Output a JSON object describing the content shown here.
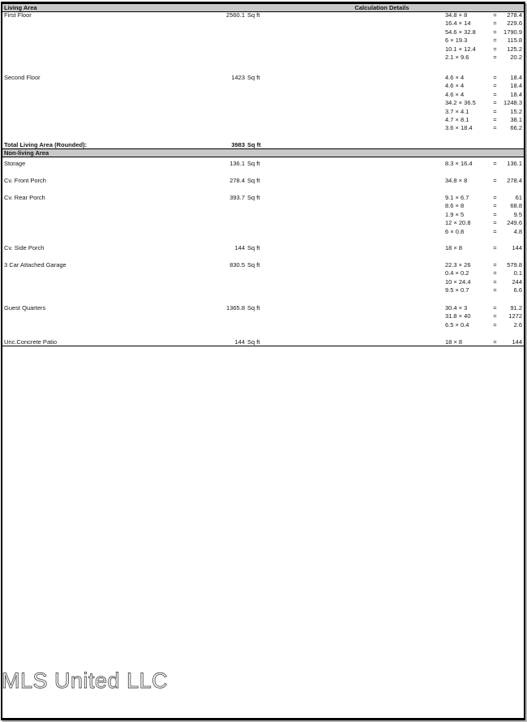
{
  "header": {
    "section_title": "Living Area",
    "details_title": "Calculation Details"
  },
  "living_area": {
    "rows": [
      {
        "name": "First Floor",
        "area": "2560.1",
        "unit": "Sq ft",
        "calcs": [
          {
            "expr": "34.8 × 8",
            "result": "278.4"
          },
          {
            "expr": "16.4 × 14",
            "result": "229.6"
          },
          {
            "expr": "54.6 × 32.8",
            "result": "1790.9"
          },
          {
            "expr": "6 × 19.3",
            "result": "115.8"
          },
          {
            "expr": "10.1 × 12.4",
            "result": "125.2"
          },
          {
            "expr": "2.1 × 9.6",
            "result": "20.2"
          }
        ]
      },
      {
        "name": "Second Floor",
        "area": "1423",
        "unit": "Sq ft",
        "calcs": [
          {
            "expr": "4.6 × 4",
            "result": "18.4"
          },
          {
            "expr": "4.6 × 4",
            "result": "18.4"
          },
          {
            "expr": "4.6 × 4",
            "result": "18.4"
          },
          {
            "expr": "34.2 × 36.5",
            "result": "1248.3"
          },
          {
            "expr": "3.7 × 4.1",
            "result": "15.2"
          },
          {
            "expr": "4.7 × 8.1",
            "result": "38.1"
          },
          {
            "expr": "3.6 × 18.4",
            "result": "66.2"
          }
        ]
      }
    ]
  },
  "total": {
    "label": "Total Living Area (Rounded):",
    "area": "3983",
    "unit": "Sq ft"
  },
  "non_living_area": {
    "section_title": "Non-living Area",
    "rows": [
      {
        "name": "Storage",
        "area": "136.1",
        "unit": "Sq ft",
        "calcs": [
          {
            "expr": "8.3 × 16.4",
            "result": "136.1"
          }
        ]
      },
      {
        "name": "Cv. Front Porch",
        "area": "278.4",
        "unit": "Sq ft",
        "calcs": [
          {
            "expr": "34.8 × 8",
            "result": "278.4"
          }
        ]
      },
      {
        "name": "Cv. Rear Porch",
        "area": "393.7",
        "unit": "Sq ft",
        "calcs": [
          {
            "expr": "9.1 × 6.7",
            "result": "61"
          },
          {
            "expr": "8.6 × 8",
            "result": "68.8"
          },
          {
            "expr": "1.9 × 5",
            "result": "9.5"
          },
          {
            "expr": "12 × 20.8",
            "result": "249.6"
          },
          {
            "expr": "6 × 0.8",
            "result": "4.8"
          }
        ]
      },
      {
        "name": "Cv. Side Porch",
        "area": "144",
        "unit": "Sq ft",
        "calcs": [
          {
            "expr": "18 × 8",
            "result": "144"
          }
        ]
      },
      {
        "name": "3 Car Attached Garage",
        "area": "830.5",
        "unit": "Sq ft",
        "calcs": [
          {
            "expr": "22.3 × 26",
            "result": "579.8"
          },
          {
            "expr": "0.4 × 0.2",
            "result": "0.1"
          },
          {
            "expr": "10 × 24.4",
            "result": "244"
          },
          {
            "expr": "9.5 × 0.7",
            "result": "6.6"
          }
        ]
      },
      {
        "name": "Guest Quarters",
        "area": "1365.8",
        "unit": "Sq ft",
        "calcs": [
          {
            "expr": "30.4 × 3",
            "result": "91.2"
          },
          {
            "expr": "31.8 × 40",
            "result": "1272"
          },
          {
            "expr": "6.5 × 0.4",
            "result": "2.6"
          }
        ]
      },
      {
        "name": "Unc.Concrete Patio",
        "area": "144",
        "unit": "Sq ft",
        "calcs": [
          {
            "expr": "18 × 8",
            "result": "144"
          }
        ]
      }
    ]
  },
  "symbols": {
    "equals": "=",
    "multiply": "×"
  },
  "footer": {
    "company": "MLS United LLC"
  },
  "colors": {
    "band_gray": "#c9c9c9",
    "border_black": "#000000",
    "text": "#151515"
  }
}
